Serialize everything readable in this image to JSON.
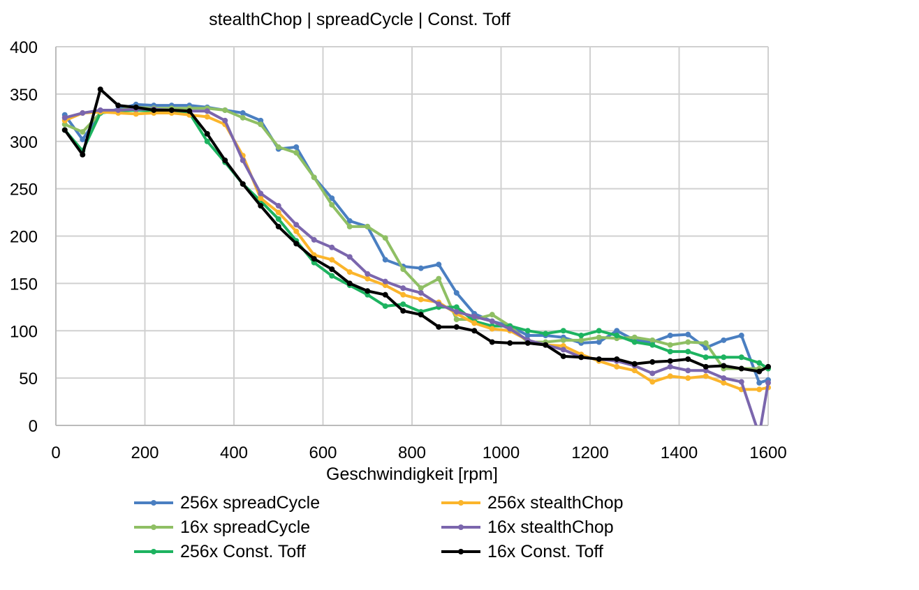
{
  "chart_data": {
    "type": "line",
    "title": "stealthChop | spreadCycle | Const. Toff",
    "xlabel": "Geschwindigkeit [rpm]",
    "ylabel": "",
    "xlim": [
      0,
      1600
    ],
    "ylim": [
      0,
      400
    ],
    "xticks": [
      0,
      200,
      400,
      600,
      800,
      1000,
      1200,
      1400,
      1600
    ],
    "yticks": [
      0,
      50,
      100,
      150,
      200,
      250,
      300,
      350,
      400
    ],
    "grid": true,
    "legend_position": "bottom",
    "x": [
      20,
      60,
      100,
      140,
      180,
      220,
      260,
      300,
      340,
      380,
      420,
      460,
      500,
      540,
      580,
      620,
      660,
      700,
      740,
      780,
      820,
      860,
      900,
      940,
      980,
      1020,
      1060,
      1100,
      1140,
      1180,
      1220,
      1260,
      1300,
      1340,
      1380,
      1420,
      1460,
      1500,
      1540,
      1580,
      1600
    ],
    "series": [
      {
        "name": "256x spreadCycle",
        "color": "#4a7fc1",
        "values": [
          328,
          302,
          330,
          334,
          339,
          338,
          338,
          338,
          336,
          333,
          330,
          322,
          292,
          294,
          262,
          240,
          216,
          210,
          175,
          168,
          166,
          170,
          140,
          118,
          110,
          105,
          95,
          95,
          93,
          87,
          88,
          100,
          90,
          88,
          95,
          96,
          82,
          90,
          95,
          45,
          48
        ]
      },
      {
        "name": "16x spreadCycle",
        "color": "#8fbf64",
        "values": [
          318,
          310,
          330,
          333,
          336,
          335,
          335,
          335,
          335,
          333,
          325,
          318,
          294,
          288,
          262,
          233,
          210,
          210,
          198,
          165,
          145,
          155,
          112,
          112,
          117,
          105,
          88,
          88,
          90,
          90,
          93,
          92,
          93,
          90,
          85,
          88,
          87,
          60,
          60,
          60,
          60
        ]
      },
      {
        "name": "256x Const. Toff",
        "color": "#1db360",
        "values": [
          312,
          290,
          330,
          332,
          333,
          332,
          332,
          330,
          300,
          278,
          255,
          237,
          218,
          195,
          172,
          158,
          148,
          138,
          126,
          128,
          120,
          125,
          125,
          110,
          105,
          105,
          100,
          97,
          100,
          95,
          100,
          95,
          88,
          85,
          78,
          78,
          72,
          72,
          72,
          66,
          60
        ]
      },
      {
        "name": "256x stealthChop",
        "color": "#fbb52b",
        "values": [
          322,
          330,
          331,
          330,
          329,
          330,
          330,
          328,
          326,
          318,
          285,
          240,
          225,
          205,
          180,
          175,
          162,
          155,
          148,
          138,
          133,
          130,
          118,
          108,
          102,
          100,
          90,
          85,
          84,
          75,
          68,
          62,
          58,
          46,
          52,
          50,
          52,
          45,
          38,
          38,
          40
        ]
      },
      {
        "name": "16x stealthChop",
        "color": "#7b66ad",
        "values": [
          325,
          330,
          333,
          333,
          334,
          334,
          333,
          332,
          332,
          322,
          280,
          245,
          232,
          212,
          196,
          188,
          178,
          160,
          152,
          145,
          140,
          128,
          120,
          115,
          110,
          102,
          90,
          85,
          80,
          72,
          70,
          68,
          63,
          55,
          62,
          58,
          58,
          50,
          46,
          -10,
          45
        ]
      },
      {
        "name": "16x Const. Toff",
        "color": "#000000",
        "values": [
          312,
          286,
          355,
          338,
          336,
          333,
          333,
          332,
          308,
          280,
          255,
          232,
          210,
          192,
          176,
          165,
          150,
          142,
          138,
          121,
          117,
          104,
          104,
          100,
          88,
          87,
          87,
          85,
          73,
          72,
          70,
          70,
          65,
          67,
          68,
          70,
          62,
          63,
          60,
          57,
          62
        ]
      }
    ]
  }
}
